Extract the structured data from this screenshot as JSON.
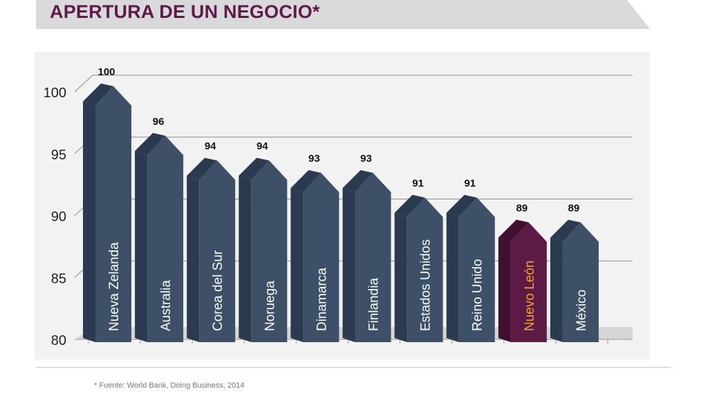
{
  "header": {
    "title": "APERTURA DE UN NEGOCIO*"
  },
  "footer": {
    "source": "* Fuente: World Bank, Doing Business, 2014"
  },
  "colors": {
    "title": "#5e1a48",
    "bar_front": "#3d5068",
    "bar_side": "#2b3a4f",
    "highlight_front": "#5b1b45",
    "highlight_side": "#3f1030",
    "highlight_label": "#f2a12b",
    "bar_label": "#ffffff"
  },
  "chart_data": {
    "type": "bar",
    "title": "",
    "xlabel": "",
    "ylabel": "",
    "ylim": [
      80,
      100
    ],
    "yticks": [
      "80",
      "85",
      "90",
      "95",
      "100"
    ],
    "categories": [
      "Nueva Zelanda",
      "Australia",
      "Corea del Sur",
      "Noruega",
      "Dinamarca",
      "Finlandia",
      "Estados Unidos",
      "Reino Unido",
      "Nuevo León",
      "México"
    ],
    "values": [
      100,
      96,
      94,
      94,
      93,
      93,
      91,
      91,
      89,
      89
    ],
    "highlight": "Nuevo León",
    "grid": true
  }
}
